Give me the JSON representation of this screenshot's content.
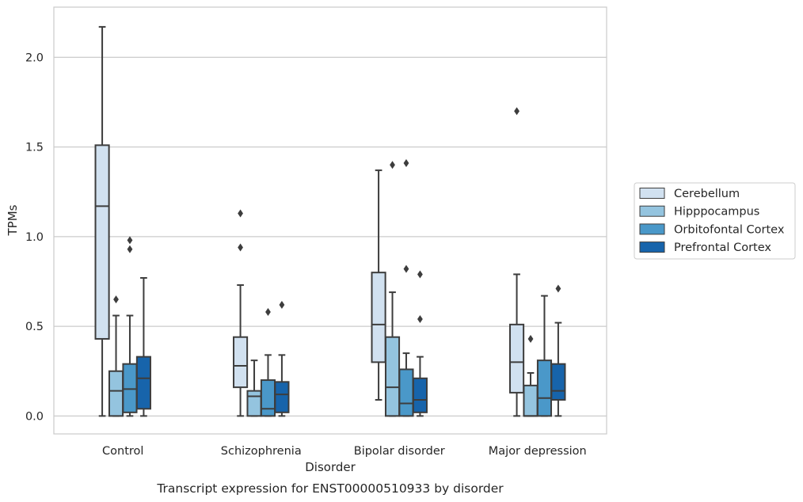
{
  "chart_data": {
    "type": "box",
    "caption": "Transcript expression for ENST00000510933 by disorder",
    "xlabel": "Disorder",
    "ylabel": "TPMs",
    "ylim": [
      -0.1,
      2.28
    ],
    "yticks": [
      0.0,
      0.5,
      1.0,
      1.5,
      2.0
    ],
    "ytick_labels": [
      "0.0",
      "0.5",
      "1.0",
      "1.5",
      "2.0"
    ],
    "grid": "horizontal",
    "legend_position": "right, outside plot",
    "categories": [
      "Control",
      "Schizophrenia",
      "Bipolar disorder",
      "Major depression"
    ],
    "series": [
      {
        "name": "Cerebellum",
        "color": "#d1e1f0",
        "boxes": [
          {
            "whislo": 0.0,
            "q1": 0.43,
            "median": 1.17,
            "q3": 1.51,
            "whishi": 2.17,
            "fliers": []
          },
          {
            "whislo": 0.0,
            "q1": 0.16,
            "median": 0.28,
            "q3": 0.44,
            "whishi": 0.73,
            "fliers": [
              0.94,
              1.13
            ]
          },
          {
            "whislo": 0.09,
            "q1": 0.3,
            "median": 0.51,
            "q3": 0.8,
            "whishi": 1.37,
            "fliers": []
          },
          {
            "whislo": 0.0,
            "q1": 0.13,
            "median": 0.3,
            "q3": 0.51,
            "whishi": 0.79,
            "fliers": [
              1.7
            ]
          }
        ]
      },
      {
        "name": "Hipppocampus",
        "color": "#94c4df",
        "boxes": [
          {
            "whislo": 0.0,
            "q1": 0.0,
            "median": 0.14,
            "q3": 0.25,
            "whishi": 0.56,
            "fliers": [
              0.65
            ]
          },
          {
            "whislo": 0.0,
            "q1": 0.0,
            "median": 0.11,
            "q3": 0.14,
            "whishi": 0.31,
            "fliers": []
          },
          {
            "whislo": 0.0,
            "q1": 0.0,
            "median": 0.16,
            "q3": 0.44,
            "whishi": 0.69,
            "fliers": [
              1.4
            ]
          },
          {
            "whislo": 0.0,
            "q1": 0.0,
            "median": 0.0,
            "q3": 0.17,
            "whishi": 0.24,
            "fliers": [
              0.43
            ]
          }
        ]
      },
      {
        "name": "Orbitofontal Cortex",
        "color": "#4a98c9",
        "boxes": [
          {
            "whislo": 0.0,
            "q1": 0.02,
            "median": 0.15,
            "q3": 0.29,
            "whishi": 0.56,
            "fliers": [
              0.93,
              0.98
            ]
          },
          {
            "whislo": 0.0,
            "q1": 0.0,
            "median": 0.04,
            "q3": 0.2,
            "whishi": 0.34,
            "fliers": [
              0.58
            ]
          },
          {
            "whislo": 0.0,
            "q1": 0.0,
            "median": 0.07,
            "q3": 0.26,
            "whishi": 0.35,
            "fliers": [
              0.82,
              1.41
            ]
          },
          {
            "whislo": 0.0,
            "q1": 0.0,
            "median": 0.1,
            "q3": 0.31,
            "whishi": 0.67,
            "fliers": []
          }
        ]
      },
      {
        "name": "Prefrontal Cortex",
        "color": "#1764ab",
        "boxes": [
          {
            "whislo": 0.0,
            "q1": 0.04,
            "median": 0.21,
            "q3": 0.33,
            "whishi": 0.77,
            "fliers": []
          },
          {
            "whislo": 0.0,
            "q1": 0.02,
            "median": 0.12,
            "q3": 0.19,
            "whishi": 0.34,
            "fliers": [
              0.62
            ]
          },
          {
            "whislo": 0.0,
            "q1": 0.02,
            "median": 0.09,
            "q3": 0.21,
            "whishi": 0.33,
            "fliers": [
              0.54,
              0.79
            ]
          },
          {
            "whislo": 0.0,
            "q1": 0.09,
            "median": 0.14,
            "q3": 0.29,
            "whishi": 0.52,
            "fliers": [
              0.71
            ]
          }
        ]
      }
    ]
  }
}
